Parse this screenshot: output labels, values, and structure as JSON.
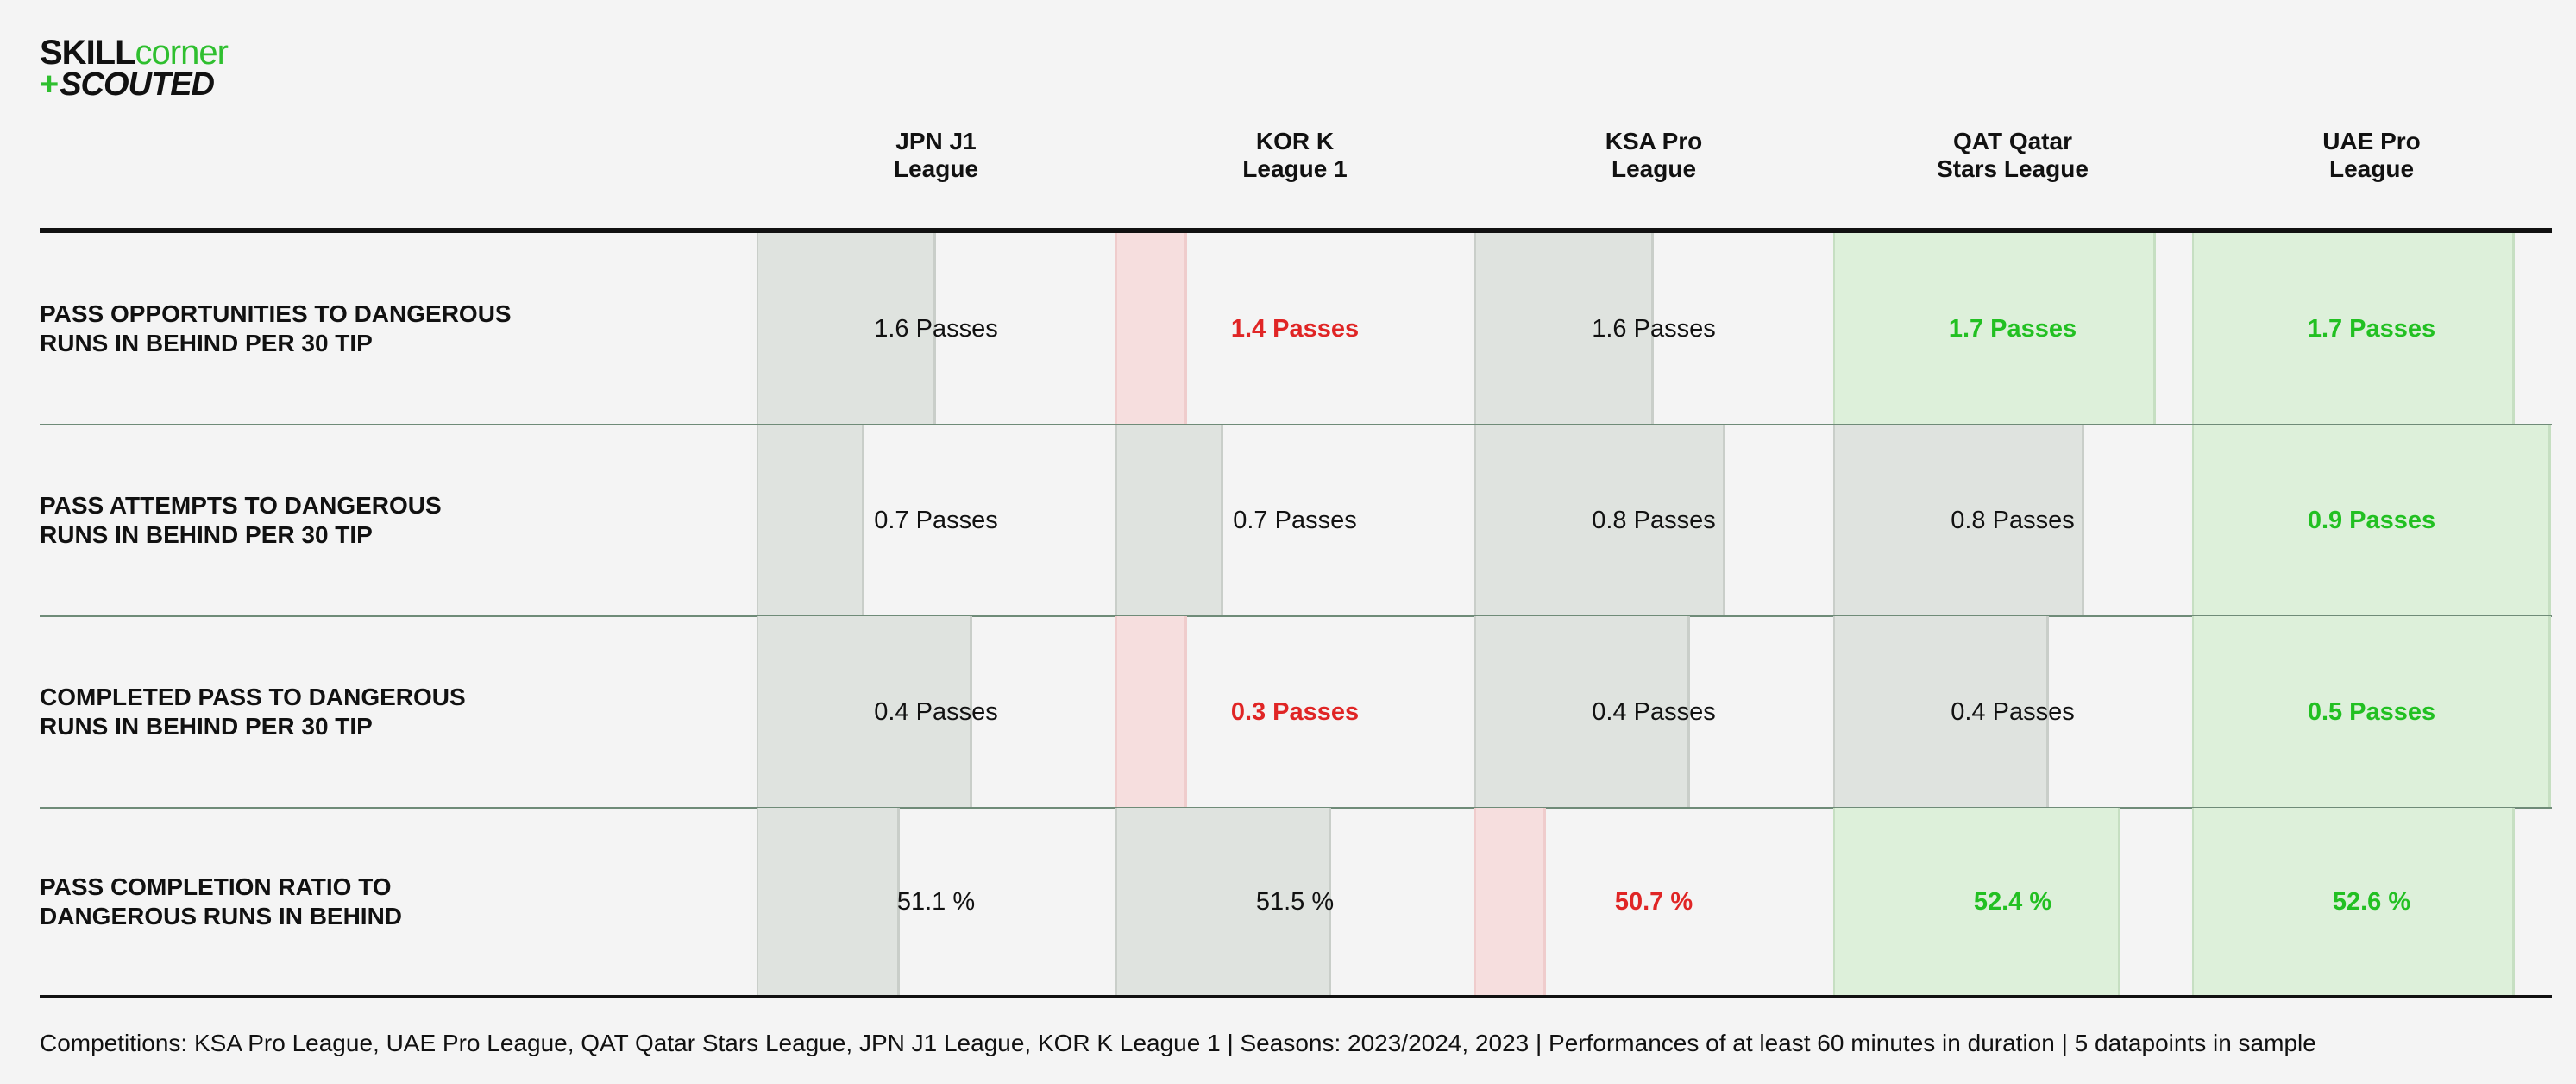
{
  "logo": {
    "line1_a": "SKILL",
    "line1_b": "corner",
    "line2_plus": "+",
    "line2_b": "SCOUTED"
  },
  "chart_data": {
    "type": "table",
    "columns": [
      "JPN J1\nLeague",
      "KOR K\nLeague 1",
      "KSA Pro\nLeague",
      "QAT Qatar\nStars League",
      "UAE Pro\nLeague"
    ],
    "rows": [
      {
        "label": "PASS OPPORTUNITIES TO DANGEROUS\nRUNS IN BEHIND PER 30 TIP",
        "values": [
          1.6,
          1.4,
          1.6,
          1.7,
          1.7
        ],
        "texts": [
          "1.6 Passes",
          "1.4 Passes",
          "1.6 Passes",
          "1.7 Passes",
          "1.7 Passes"
        ],
        "status": [
          "neutral",
          "low",
          "neutral",
          "high",
          "high"
        ],
        "fill": [
          0.5,
          0.2,
          0.5,
          0.9,
          0.9
        ]
      },
      {
        "label": "PASS ATTEMPTS TO DANGEROUS\nRUNS IN BEHIND PER 30 TIP",
        "values": [
          0.7,
          0.7,
          0.8,
          0.8,
          0.9
        ],
        "texts": [
          "0.7 Passes",
          "0.7 Passes",
          "0.8 Passes",
          "0.8 Passes",
          "0.9 Passes"
        ],
        "status": [
          "neutral",
          "neutral",
          "neutral",
          "neutral",
          "high"
        ],
        "fill": [
          0.3,
          0.3,
          0.7,
          0.7,
          1.0
        ]
      },
      {
        "label": "COMPLETED PASS TO DANGEROUS\nRUNS IN BEHIND PER 30 TIP",
        "values": [
          0.4,
          0.3,
          0.4,
          0.4,
          0.5
        ],
        "texts": [
          "0.4 Passes",
          "0.3 Passes",
          "0.4 Passes",
          "0.4 Passes",
          "0.5 Passes"
        ],
        "status": [
          "neutral",
          "low",
          "neutral",
          "neutral",
          "high"
        ],
        "fill": [
          0.6,
          0.2,
          0.6,
          0.6,
          1.0
        ]
      },
      {
        "label": "PASS COMPLETION RATIO TO\nDANGEROUS RUNS IN BEHIND",
        "values": [
          51.1,
          51.5,
          50.7,
          52.4,
          52.6
        ],
        "texts": [
          "51.1 %",
          "51.5 %",
          "50.7 %",
          "52.4 %",
          "52.6 %"
        ],
        "status": [
          "neutral",
          "neutral",
          "low",
          "high",
          "high"
        ],
        "fill": [
          0.4,
          0.6,
          0.2,
          0.8,
          0.9
        ]
      }
    ],
    "colors": {
      "neutral_fill": "#dfe3df",
      "low_fill": "#f6dede",
      "high_fill": "#ddf0da",
      "low_text": "#e02525",
      "high_text": "#22c022"
    }
  },
  "footer": {
    "text": "Competitions: KSA Pro League, UAE Pro League, QAT Qatar Stars League, JPN J1 League, KOR K League 1 | Seasons: 2023/2024, 2023 | Performances of at least 60 minutes in duration | 5 datapoints in sample"
  }
}
